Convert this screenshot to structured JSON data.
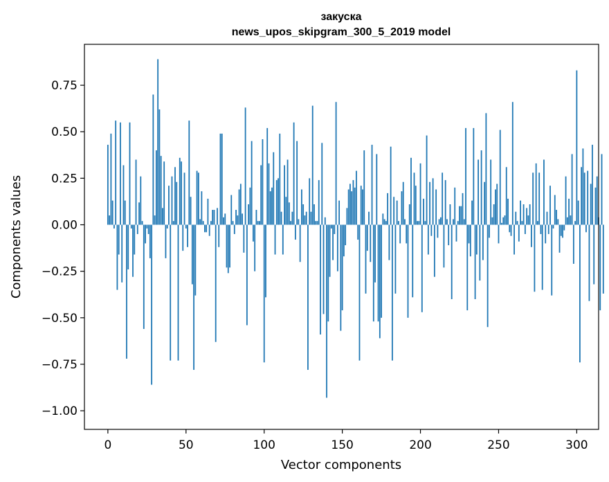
{
  "chart_data": {
    "type": "bar",
    "title": "закуска",
    "subtitle": "news_upos_skipgram_300_5_2019 model",
    "xlabel": "Vector components",
    "ylabel": "Components values",
    "xlim": [
      -15,
      314
    ],
    "ylim": [
      -1.1,
      0.97
    ],
    "xticks": [
      0,
      50,
      100,
      150,
      200,
      250,
      300
    ],
    "xtick_labels": [
      "0",
      "50",
      "100",
      "150",
      "200",
      "250",
      "300"
    ],
    "yticks": [
      -1.0,
      -0.75,
      -0.5,
      -0.25,
      0.0,
      0.25,
      0.5,
      0.75
    ],
    "ytick_labels": [
      "−1.00",
      "−0.75",
      "−0.50",
      "−0.25",
      "0.00",
      "0.25",
      "0.50",
      "0.75"
    ],
    "bar_color": "#1f77b4",
    "values": [
      0.43,
      0.05,
      0.49,
      0.13,
      -0.02,
      0.56,
      -0.35,
      -0.16,
      0.55,
      -0.31,
      0.32,
      0.13,
      -0.72,
      -0.24,
      0.55,
      -0.02,
      -0.28,
      -0.16,
      0.35,
      -0.05,
      0.12,
      0.26,
      0.02,
      -0.56,
      -0.1,
      -0.02,
      -0.05,
      -0.18,
      -0.86,
      0.7,
      0.05,
      0.4,
      0.89,
      0.62,
      0.37,
      0.09,
      0.34,
      -0.18,
      -0.02,
      0.21,
      -0.73,
      0.26,
      0.02,
      0.31,
      0.23,
      -0.73,
      0.36,
      0.34,
      -0.14,
      0.28,
      -0.02,
      -0.12,
      0.56,
      0.15,
      -0.32,
      -0.78,
      -0.38,
      0.29,
      0.28,
      0.03,
      0.18,
      0.02,
      -0.04,
      -0.04,
      0.14,
      -0.06,
      0.02,
      0.08,
      0.08,
      -0.63,
      0.09,
      -0.12,
      0.49,
      0.49,
      0.04,
      0.06,
      -0.23,
      -0.26,
      -0.23,
      0.16,
      0.02,
      -0.05,
      0.08,
      0.05,
      0.19,
      0.22,
      0.06,
      -0.15,
      0.63,
      -0.54,
      0.11,
      0.2,
      0.45,
      -0.09,
      -0.25,
      0.08,
      0.02,
      0.02,
      0.32,
      0.46,
      -0.74,
      -0.39,
      0.52,
      0.33,
      0.18,
      0.2,
      0.39,
      -0.16,
      0.24,
      0.25,
      0.49,
      0.07,
      -0.16,
      0.32,
      0.15,
      0.35,
      0.12,
      0.02,
      0.07,
      0.55,
      -0.08,
      0.45,
      0.03,
      -0.2,
      0.19,
      0.11,
      0.05,
      0.07,
      -0.78,
      0.25,
      0.07,
      0.64,
      0.11,
      0.02,
      0.02,
      0.24,
      -0.59,
      0.44,
      -0.48,
      0.04,
      -0.93,
      -0.52,
      -0.28,
      -0.02,
      -0.19,
      -0.05,
      0.66,
      -0.25,
      0.13,
      -0.57,
      -0.46,
      -0.17,
      -0.11,
      0.09,
      0.19,
      0.22,
      0.18,
      0.24,
      0.2,
      0.29,
      -0.08,
      -0.73,
      0.21,
      0.19,
      0.4,
      -0.37,
      -0.14,
      0.07,
      -0.2,
      0.43,
      -0.52,
      -0.31,
      0.38,
      -0.52,
      -0.61,
      -0.5,
      0.06,
      0.03,
      0.02,
      0.17,
      -0.19,
      0.42,
      -0.73,
      0.15,
      -0.37,
      0.13,
      0.02,
      -0.1,
      0.18,
      0.23,
      0.03,
      -0.1,
      -0.5,
      0.11,
      0.36,
      -0.39,
      0.28,
      0.21,
      0.02,
      0.02,
      0.33,
      -0.47,
      0.14,
      0.02,
      0.48,
      -0.16,
      0.23,
      -0.06,
      0.25,
      -0.28,
      0.19,
      -0.07,
      0.03,
      0.04,
      0.28,
      -0.23,
      0.24,
      0.03,
      -0.11,
      0.11,
      -0.4,
      0.03,
      0.2,
      -0.09,
      0.02,
      0.1,
      0.1,
      0.17,
      0.03,
      0.52,
      -0.46,
      -0.1,
      -0.17,
      0.13,
      0.52,
      -0.4,
      -0.16,
      0.35,
      -0.3,
      0.4,
      -0.19,
      0.23,
      0.6,
      -0.55,
      -0.07,
      0.35,
      0.04,
      0.11,
      0.19,
      0.22,
      -0.1,
      0.51,
      0.01,
      0.04,
      0.05,
      0.31,
      0.14,
      -0.04,
      -0.06,
      0.66,
      -0.16,
      0.07,
      0.02,
      -0.09,
      0.13,
      0.02,
      0.11,
      -0.05,
      0.09,
      0.05,
      0.11,
      -0.12,
      0.28,
      -0.36,
      0.33,
      0.02,
      0.28,
      -0.05,
      -0.35,
      0.35,
      -0.1,
      0.07,
      -0.05,
      0.21,
      -0.38,
      -0.02,
      0.16,
      0.08,
      0.03,
      -0.15,
      -0.06,
      -0.07,
      -0.03,
      0.26,
      0.04,
      0.14,
      0.05,
      0.38,
      -0.21,
      0.02,
      0.83,
      0.13,
      -0.74,
      0.31,
      0.41,
      0.28,
      -0.04,
      0.29,
      -0.41,
      0.22,
      0.43,
      -0.32,
      0.2,
      0.26,
      0.04,
      -0.46,
      0.38,
      -0.37
    ]
  }
}
